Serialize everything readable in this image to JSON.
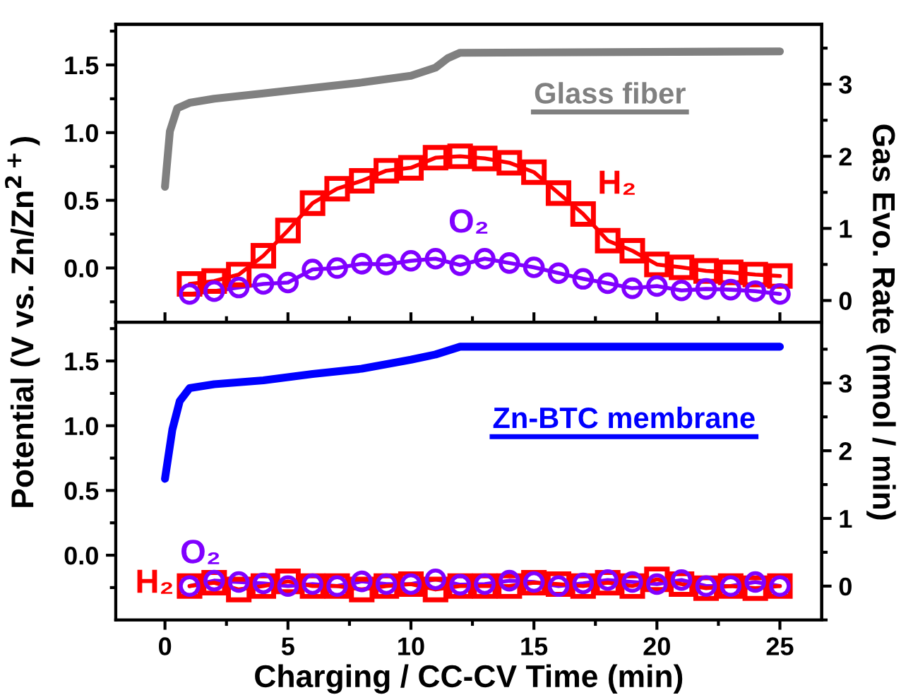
{
  "chart_data": [
    {
      "type": "line",
      "xlim": [
        -2,
        26.7
      ],
      "xticks": [
        0,
        5,
        10,
        15,
        20,
        25
      ],
      "ylim": [
        -0.4,
        1.8
      ],
      "yticks": [
        {
          "value": 0,
          "label": "0.0"
        },
        {
          "value": 0.5,
          "label": "0.5"
        },
        {
          "value": 1,
          "label": "1.0"
        },
        {
          "value": 1.5,
          "label": "1.5"
        }
      ],
      "y2lim": [
        -0.3,
        3.83
      ],
      "y2ticks": [
        0,
        1,
        2,
        3
      ],
      "tick_labels": "y",
      "ylabel": "Potential (V vs. Zn/Zn$^{2+}$)",
      "y2label": "Gas Evo. Rate (nmol / min)",
      "grid": false,
      "legend": false,
      "series": [
        {
          "name": "Glass fiber",
          "color": "#808080",
          "marker": "none",
          "x": [
            0,
            0.2,
            0.5,
            1,
            2,
            4,
            6,
            8,
            10,
            11,
            11.5,
            12,
            25
          ],
          "values": [
            0.6,
            1.01,
            1.18,
            1.22,
            1.25,
            1.29,
            1.33,
            1.37,
            1.42,
            1.48,
            1.55,
            1.59,
            1.6
          ]
        },
        {
          "name": "H₂",
          "color": "#ff0000",
          "marker": "square",
          "axis": "y2",
          "x": [
            1,
            2,
            3,
            4,
            5,
            6,
            7,
            8,
            9,
            10,
            11,
            12,
            13,
            14,
            15,
            16,
            17,
            18,
            19,
            20,
            21,
            22,
            23,
            24,
            25
          ],
          "values": [
            0.23,
            0.27,
            0.36,
            0.62,
            0.97,
            1.35,
            1.55,
            1.66,
            1.8,
            1.84,
            1.98,
            2.0,
            1.97,
            1.91,
            1.78,
            1.49,
            1.2,
            0.83,
            0.69,
            0.5,
            0.46,
            0.41,
            0.39,
            0.36,
            0.34
          ]
        },
        {
          "name": "O₂",
          "color": "#8000ff",
          "marker": "circle",
          "axis": "y2",
          "x": [
            1,
            2,
            3,
            4,
            5,
            6,
            7,
            8,
            9,
            10,
            11,
            12,
            13,
            14,
            15,
            16,
            17,
            18,
            19,
            20,
            21,
            22,
            23,
            24,
            25
          ],
          "values": [
            0.09,
            0.13,
            0.18,
            0.23,
            0.25,
            0.43,
            0.45,
            0.51,
            0.5,
            0.55,
            0.58,
            0.49,
            0.58,
            0.52,
            0.46,
            0.38,
            0.3,
            0.24,
            0.17,
            0.2,
            0.14,
            0.16,
            0.15,
            0.13,
            0.09
          ]
        }
      ]
    },
    {
      "type": "line",
      "xlim": [
        -2,
        26.7
      ],
      "xticks": [
        0,
        5,
        10,
        15,
        20,
        25
      ],
      "ylim": [
        -0.5,
        1.8
      ],
      "yticks": [
        {
          "value": 0,
          "label": "0.0"
        },
        {
          "value": 0.5,
          "label": "0.5"
        },
        {
          "value": 1,
          "label": "1.0"
        },
        {
          "value": 1.5,
          "label": "1.5"
        }
      ],
      "y2lim": [
        -0.5,
        3.9
      ],
      "y2ticks": [
        0,
        1,
        2,
        3
      ],
      "xlabel": "Charging / CC-CV Time (min)",
      "grid": false,
      "legend": false,
      "series": [
        {
          "name": "Zn-BTC membrane",
          "color": "#0000ff",
          "marker": "none",
          "x": [
            0,
            0.3,
            0.6,
            1,
            2,
            4,
            6,
            8,
            10,
            11,
            12,
            25
          ],
          "values": [
            0.59,
            0.97,
            1.19,
            1.29,
            1.32,
            1.35,
            1.4,
            1.44,
            1.51,
            1.55,
            1.61,
            1.61
          ]
        },
        {
          "name": "H₂",
          "color": "#ff0000",
          "marker": "square",
          "axis": "y2",
          "x": [
            1,
            2,
            3,
            4,
            5,
            6,
            7,
            8,
            9,
            10,
            11,
            12,
            13,
            14,
            15,
            16,
            17,
            18,
            19,
            20,
            21,
            22,
            23,
            24,
            25
          ],
          "values": [
            0.0,
            0.05,
            -0.05,
            0.0,
            0.07,
            0.0,
            0.0,
            -0.05,
            0.0,
            0.03,
            -0.05,
            0.0,
            0.0,
            0.0,
            0.05,
            0.03,
            0.0,
            0.05,
            0.0,
            0.1,
            0.03,
            -0.03,
            0.0,
            -0.03,
            0.0
          ]
        },
        {
          "name": "O₂",
          "color": "#8000ff",
          "marker": "circle",
          "axis": "y2",
          "x": [
            1,
            2,
            3,
            4,
            5,
            6,
            7,
            8,
            9,
            10,
            11,
            12,
            13,
            14,
            15,
            16,
            17,
            18,
            19,
            20,
            21,
            22,
            23,
            24,
            25
          ],
          "values": [
            0.0,
            0.08,
            0.06,
            0.04,
            0.0,
            0.03,
            0.0,
            0.07,
            0.03,
            0.03,
            0.1,
            0.02,
            0.03,
            0.08,
            0.06,
            0.0,
            0.04,
            0.09,
            0.06,
            0.03,
            0.09,
            0.0,
            0.0,
            0.06,
            0.0
          ]
        }
      ]
    }
  ]
}
